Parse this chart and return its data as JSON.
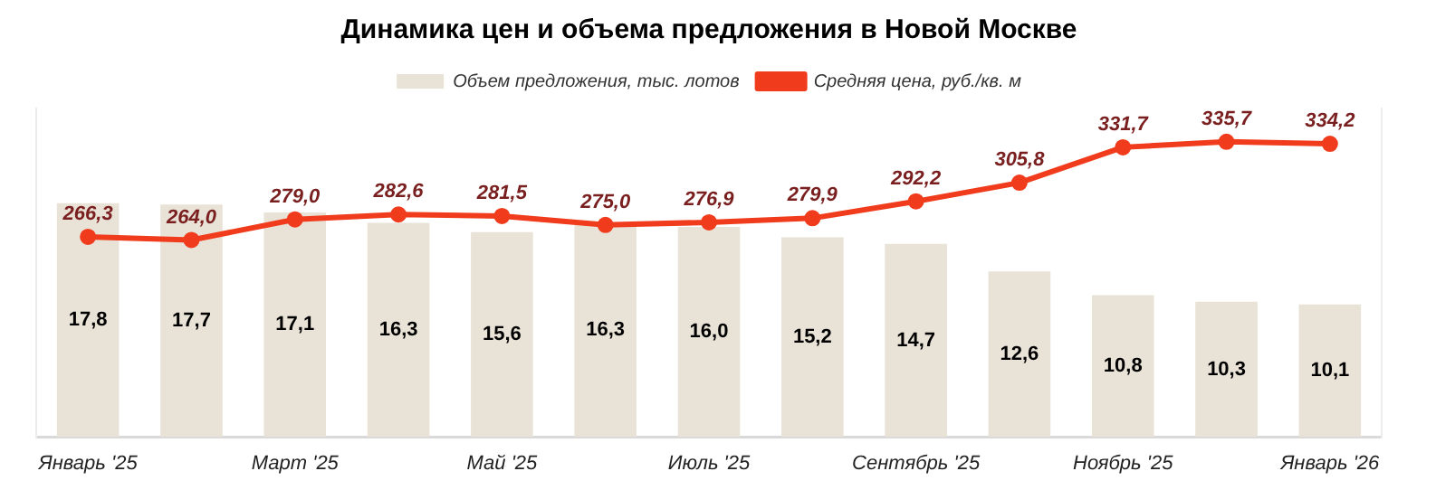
{
  "chart_data": {
    "type": "bar",
    "title": "Динамика цен и объема предложения в Новой Москве",
    "categories": [
      "Январь '25",
      null,
      "Март '25",
      null,
      "Май '25",
      null,
      "Июль '25",
      null,
      "Сентябрь '25",
      null,
      "Ноябрь '25",
      null,
      "Январь '26"
    ],
    "series": [
      {
        "name": "Объем предложения, тыс. лотов",
        "color": "#e9e2d7",
        "values": [
          17.8,
          17.7,
          17.1,
          16.3,
          15.6,
          16.3,
          16.0,
          15.2,
          14.7,
          12.6,
          10.8,
          10.3,
          10.1
        ],
        "value_labels": [
          "17,8",
          "17,7",
          "17,1",
          "16,3",
          "15,6",
          "16,3",
          "16,0",
          "15,2",
          "14,7",
          "12,6",
          "10,8",
          "10,3",
          "10,1"
        ]
      },
      {
        "name": "Средняя цена, руб./кв. м",
        "type": "line",
        "axis": "y2",
        "color": "#f03c1c",
        "values": [
          266.3,
          264.0,
          279.0,
          282.6,
          281.5,
          275.0,
          276.9,
          279.9,
          292.2,
          305.8,
          331.7,
          335.7,
          334.2
        ],
        "value_labels": [
          "266,3",
          "264,0",
          "279,0",
          "282,6",
          "281,5",
          "275,0",
          "276,9",
          "279,9",
          "292,2",
          "305,8",
          "331,7",
          "335,7",
          "334,2"
        ]
      }
    ],
    "ylim": [
      0,
      25
    ],
    "y2lim": [
      120,
      360
    ],
    "tick_labels": "x",
    "grid": false,
    "legend": "top",
    "marker": "circle"
  }
}
